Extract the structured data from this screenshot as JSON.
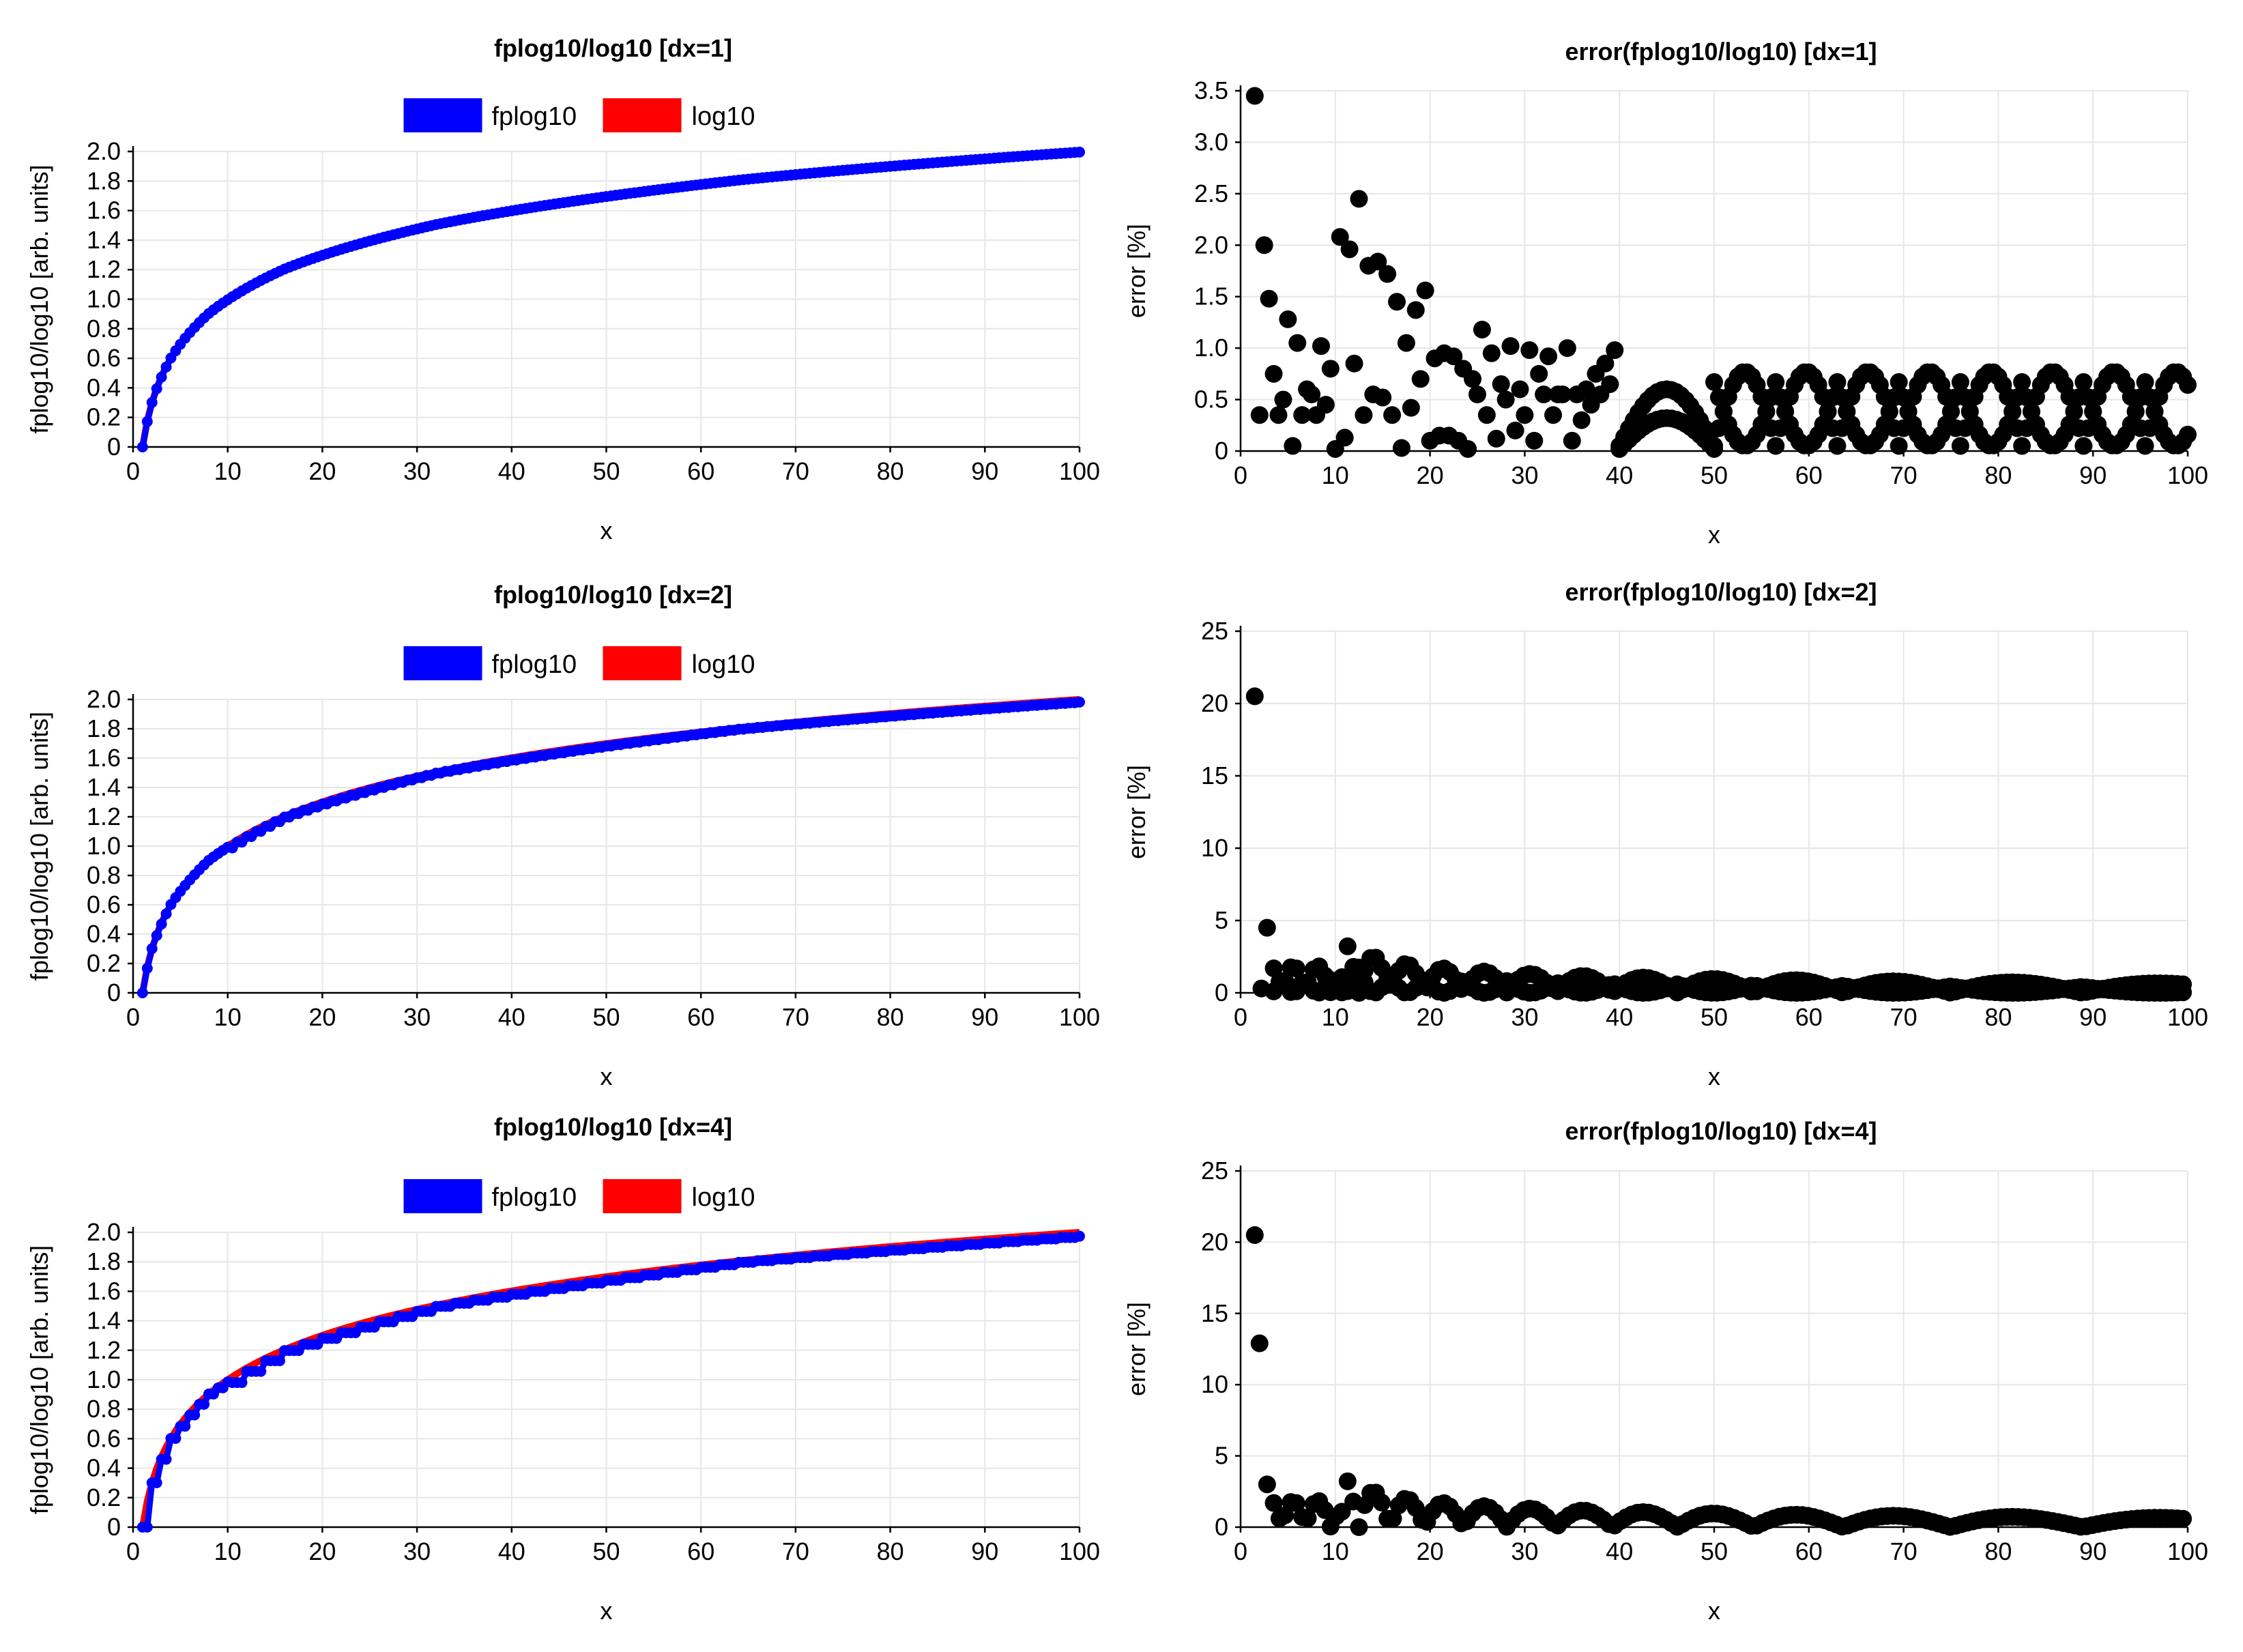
{
  "figure_title": "",
  "colors": {
    "fplog10": "#0000ff",
    "log10": "#ff0000",
    "error": "#000000",
    "grid": "#e6e6e6"
  },
  "chart_data": [
    {
      "id": "fit-dx1",
      "type": "line",
      "title": "fplog10/log10 [dx=1]",
      "xlabel": "x",
      "ylabel": "fplog10/log10 [arb. units]",
      "xlim": [
        0,
        100
      ],
      "ylim": [
        0,
        2.0
      ],
      "dx": 1,
      "x_ticks": [
        0,
        10,
        20,
        30,
        40,
        50,
        60,
        70,
        80,
        90,
        100
      ],
      "x_tick_labels": [
        "0",
        "10",
        "20",
        "30",
        "40",
        "50",
        "60",
        "70",
        "80",
        "90",
        "100"
      ],
      "y_ticks": [
        0,
        0.2,
        0.4,
        0.6,
        0.8,
        1.0,
        1.2,
        1.4,
        1.6,
        1.8,
        2.0
      ],
      "y_tick_labels": [
        "0",
        "0.2",
        "0.4",
        "0.6",
        "0.8",
        "1.0",
        "1.2",
        "1.4",
        "1.6",
        "1.8",
        "2.0"
      ],
      "legend": {
        "position": "top-center",
        "entries": [
          "fplog10",
          "log10"
        ]
      },
      "series": [
        {
          "name": "fplog10",
          "function": "piecewise-linear approximation of log10(x), sampled every dx"
        },
        {
          "name": "log10",
          "function": "log10(x)"
        }
      ]
    },
    {
      "id": "err-dx1",
      "type": "scatter",
      "title": "error(fplog10/log10) [dx=1]",
      "xlabel": "x",
      "ylabel": "error [%]",
      "xlim": [
        0,
        100
      ],
      "ylim": [
        0,
        3.5
      ],
      "dx": 1,
      "x_ticks": [
        0,
        10,
        20,
        30,
        40,
        50,
        60,
        70,
        80,
        90,
        100
      ],
      "x_tick_labels": [
        "0",
        "10",
        "20",
        "30",
        "40",
        "50",
        "60",
        "70",
        "80",
        "90",
        "100"
      ],
      "y_ticks": [
        0,
        0.5,
        1.0,
        1.5,
        2.0,
        2.5,
        3.0,
        3.5
      ],
      "y_tick_labels": [
        "0",
        "0.5",
        "1.0",
        "1.5",
        "2.0",
        "2.5",
        "3.0",
        "3.5"
      ],
      "series": [
        {
          "name": "error",
          "function": "percent difference between fplog10 and log10 per sample"
        }
      ]
    },
    {
      "id": "fit-dx2",
      "type": "line",
      "title": "fplog10/log10 [dx=2]",
      "xlabel": "x",
      "ylabel": "fplog10/log10 [arb. units]",
      "xlim": [
        0,
        100
      ],
      "ylim": [
        0,
        2.0
      ],
      "dx": 2,
      "x_ticks": [
        0,
        10,
        20,
        30,
        40,
        50,
        60,
        70,
        80,
        90,
        100
      ],
      "x_tick_labels": [
        "0",
        "10",
        "20",
        "30",
        "40",
        "50",
        "60",
        "70",
        "80",
        "90",
        "100"
      ],
      "y_ticks": [
        0,
        0.2,
        0.4,
        0.6,
        0.8,
        1.0,
        1.2,
        1.4,
        1.6,
        1.8,
        2.0
      ],
      "y_tick_labels": [
        "0",
        "0.2",
        "0.4",
        "0.6",
        "0.8",
        "1.0",
        "1.2",
        "1.4",
        "1.6",
        "1.8",
        "2.0"
      ],
      "legend": {
        "position": "top-center",
        "entries": [
          "fplog10",
          "log10"
        ]
      },
      "series": [
        {
          "name": "fplog10",
          "function": "piecewise-linear approximation of log10(x), sampled every dx"
        },
        {
          "name": "log10",
          "function": "log10(x)"
        }
      ]
    },
    {
      "id": "err-dx2",
      "type": "scatter",
      "title": "error(fplog10/log10) [dx=2]",
      "xlabel": "x",
      "ylabel": "error [%]",
      "xlim": [
        0,
        100
      ],
      "ylim": [
        0,
        25
      ],
      "dx": 2,
      "x_ticks": [
        0,
        10,
        20,
        30,
        40,
        50,
        60,
        70,
        80,
        90,
        100
      ],
      "x_tick_labels": [
        "0",
        "10",
        "20",
        "30",
        "40",
        "50",
        "60",
        "70",
        "80",
        "90",
        "100"
      ],
      "y_ticks": [
        0,
        5,
        10,
        15,
        20,
        25
      ],
      "y_tick_labels": [
        "0",
        "5",
        "10",
        "15",
        "20",
        "25"
      ],
      "series": [
        {
          "name": "error",
          "function": "percent difference between fplog10 and log10 per sample"
        }
      ]
    },
    {
      "id": "fit-dx4",
      "type": "line",
      "title": "fplog10/log10 [dx=4]",
      "xlabel": "x",
      "ylabel": "fplog10/log10 [arb. units]",
      "xlim": [
        0,
        100
      ],
      "ylim": [
        0,
        2.0
      ],
      "dx": 4,
      "x_ticks": [
        0,
        10,
        20,
        30,
        40,
        50,
        60,
        70,
        80,
        90,
        100
      ],
      "x_tick_labels": [
        "0",
        "10",
        "20",
        "30",
        "40",
        "50",
        "60",
        "70",
        "80",
        "90",
        "100"
      ],
      "y_ticks": [
        0,
        0.2,
        0.4,
        0.6,
        0.8,
        1.0,
        1.2,
        1.4,
        1.6,
        1.8,
        2.0
      ],
      "y_tick_labels": [
        "0",
        "0.2",
        "0.4",
        "0.6",
        "0.8",
        "1.0",
        "1.2",
        "1.4",
        "1.6",
        "1.8",
        "2.0"
      ],
      "legend": {
        "position": "top-center",
        "entries": [
          "fplog10",
          "log10"
        ]
      },
      "series": [
        {
          "name": "fplog10",
          "function": "piecewise-linear approximation of log10(x), sampled every dx"
        },
        {
          "name": "log10",
          "function": "log10(x)"
        }
      ]
    },
    {
      "id": "err-dx4",
      "type": "scatter",
      "title": "error(fplog10/log10) [dx=4]",
      "xlabel": "x",
      "ylabel": "error [%]",
      "xlim": [
        0,
        100
      ],
      "ylim": [
        0,
        25
      ],
      "dx": 4,
      "x_ticks": [
        0,
        10,
        20,
        30,
        40,
        50,
        60,
        70,
        80,
        90,
        100
      ],
      "x_tick_labels": [
        "0",
        "10",
        "20",
        "30",
        "40",
        "50",
        "60",
        "70",
        "80",
        "90",
        "100"
      ],
      "y_ticks": [
        0,
        5,
        10,
        15,
        20,
        25
      ],
      "y_tick_labels": [
        "0",
        "5",
        "10",
        "15",
        "20",
        "25"
      ],
      "series": [
        {
          "name": "error",
          "function": "percent difference between fplog10 and log10 per sample"
        }
      ]
    }
  ]
}
